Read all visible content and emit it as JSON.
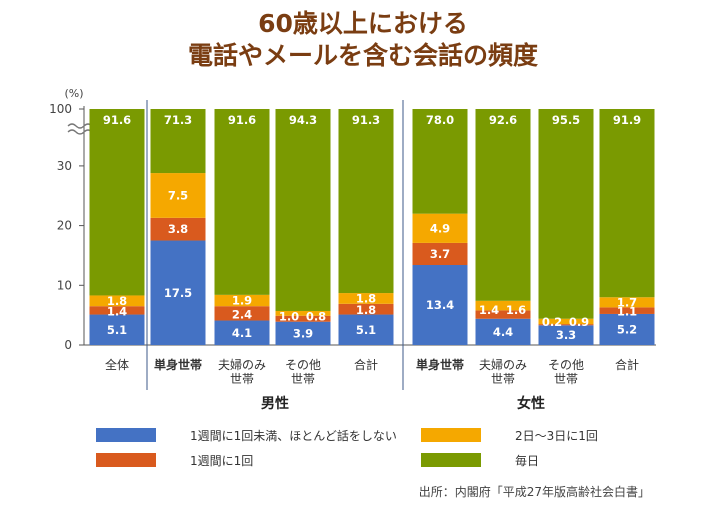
{
  "title_line1": "60歳以上における",
  "title_line2": "電話やメールを含む会話の頻度",
  "y_unit": "(%)",
  "source": "出所：内閣府「平成27年版高齢社会白書」",
  "colors": {
    "title": "#7a3d12",
    "text": "#444444",
    "axis": "#555555",
    "divider": "#3d5a8a"
  },
  "chart_data": {
    "type": "bar",
    "stacked": true,
    "y_axis_break": true,
    "y_ticks": [
      "0",
      "10",
      "20",
      "30",
      "100"
    ],
    "groups": [
      {
        "label": "男性",
        "category_count": 5
      },
      {
        "label": "女性",
        "category_count": 4
      }
    ],
    "categories": [
      {
        "label": [
          "全体"
        ],
        "bold": false
      },
      {
        "label": [
          "単身世帯"
        ],
        "bold": true
      },
      {
        "label": [
          "夫婦のみ",
          "世帯"
        ],
        "bold": false
      },
      {
        "label": [
          "その他",
          "世帯"
        ],
        "bold": false
      },
      {
        "label": [
          "合計"
        ],
        "bold": false
      },
      {
        "label": [
          "単身世帯"
        ],
        "bold": true
      },
      {
        "label": [
          "夫婦のみ",
          "世帯"
        ],
        "bold": false
      },
      {
        "label": [
          "その他",
          "世帯"
        ],
        "bold": false
      },
      {
        "label": [
          "合計"
        ],
        "bold": false
      }
    ],
    "series": [
      {
        "name": "1週間に1回未満、ほとんど話をしない",
        "color": "#4472c4",
        "values": [
          5.1,
          17.5,
          4.1,
          3.9,
          5.1,
          13.4,
          4.4,
          3.3,
          5.2
        ]
      },
      {
        "name": "1週間に1回",
        "color": "#d95a1e",
        "values": [
          1.4,
          3.8,
          2.4,
          1.0,
          1.8,
          3.7,
          1.4,
          0.2,
          1.1
        ]
      },
      {
        "name": "2日～3日に1回",
        "color": "#f5a800",
        "values": [
          1.8,
          7.5,
          1.9,
          0.8,
          1.8,
          4.9,
          1.6,
          0.9,
          1.7
        ]
      },
      {
        "name": "毎日",
        "color": "#7a9a01",
        "values": [
          91.6,
          71.3,
          91.6,
          94.3,
          91.3,
          78.0,
          92.6,
          95.5,
          91.9
        ]
      }
    ],
    "value_labels": [
      [
        "5.1",
        "1.4",
        "1.8",
        "91.6"
      ],
      [
        "17.5",
        "3.8",
        "7.5",
        "71.3"
      ],
      [
        "4.1",
        "2.4",
        "1.9",
        "91.6"
      ],
      [
        "3.9",
        "1.0",
        "0.8",
        "94.3"
      ],
      [
        "5.1",
        "1.8",
        "1.8",
        "91.3"
      ],
      [
        "13.4",
        "3.7",
        "4.9",
        "78.0"
      ],
      [
        "4.4",
        "1.4",
        "1.6",
        "92.6"
      ],
      [
        "3.3",
        "0.2",
        "0.9",
        "95.5"
      ],
      [
        "5.2",
        "1.1",
        "1.7",
        "91.9"
      ]
    ],
    "legend_order": [
      0,
      2,
      1,
      3
    ]
  }
}
